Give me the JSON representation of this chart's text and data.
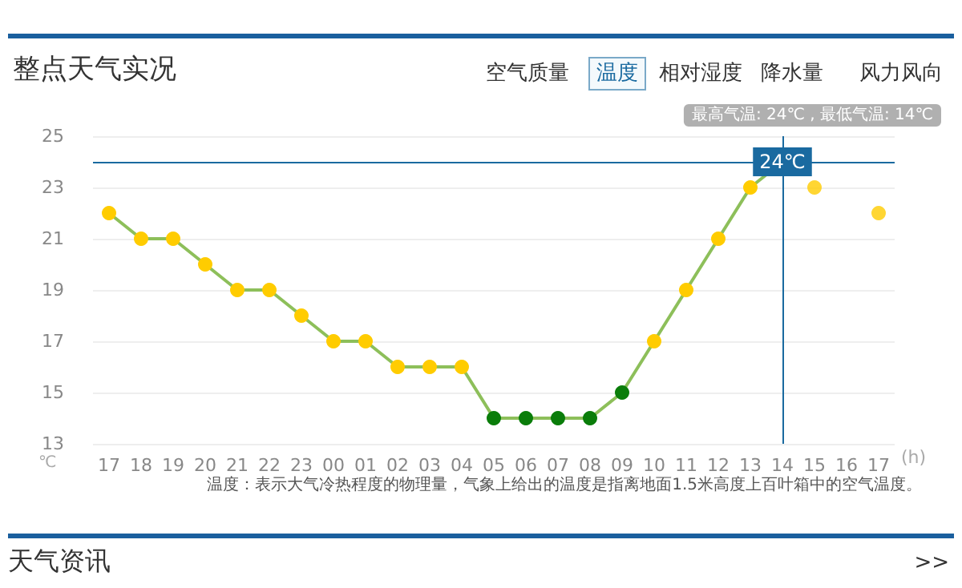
{
  "chart_data": {
    "type": "line",
    "title": "整点天气实况",
    "xlabel": "(h)",
    "ylabel": "℃",
    "categories": [
      "17",
      "18",
      "19",
      "20",
      "21",
      "22",
      "23",
      "00",
      "01",
      "02",
      "03",
      "04",
      "05",
      "06",
      "07",
      "08",
      "09",
      "10",
      "11",
      "12",
      "13",
      "14",
      "15",
      "16",
      "17"
    ],
    "series": [
      {
        "color": "#8dbf5a",
        "values": [
          22,
          21,
          21,
          20,
          19,
          19,
          18,
          17,
          17,
          16,
          16,
          16,
          14,
          14,
          14,
          14,
          15,
          17,
          19,
          21,
          23,
          24,
          null,
          null,
          null
        ],
        "colors": [
          "#ffcc00",
          "#ffcc00",
          "#ffcc00",
          "#ffcc00",
          "#ffcc00",
          "#ffcc00",
          "#ffcc00",
          "#ffcc00",
          "#ffcc00",
          "#ffcc00",
          "#ffcc00",
          "#ffcc00",
          "#0a7d0a",
          "#0a7d0a",
          "#0a7d0a",
          "#0a7d0a",
          "#0a7d0a",
          "#ffcc00",
          "#ffcc00",
          "#ffcc00",
          "#ffcc00",
          "#ffcc00",
          null,
          null,
          null
        ]
      },
      {
        "type": "scatter",
        "color": "#ffcc00",
        "values": [
          null,
          null,
          null,
          null,
          null,
          null,
          null,
          null,
          null,
          null,
          null,
          null,
          null,
          null,
          null,
          null,
          null,
          null,
          null,
          null,
          null,
          null,
          23,
          null,
          22
        ]
      }
    ],
    "ylim": [
      13,
      25
    ],
    "yticks": [
      13,
      15,
      17,
      19,
      21,
      23,
      25
    ],
    "grid": "y",
    "marker": "circle",
    "line_style": "solid",
    "ref_lines": [
      {
        "axis": "y",
        "value": 24,
        "label": "24℃",
        "color": "#1a6aa0"
      },
      {
        "axis": "x",
        "value": "14",
        "color": "#1a6aa0"
      }
    ],
    "annotations": [
      "空气质量",
      "温度",
      "相对湿度",
      "降水量",
      "风力风向",
      "最高气温: 24℃ , 最低气温: 14℃",
      "温度：表示大气冷热程度的物理量，气象上给出的温度是指离地面1.5米高度上百叶箱中的空气温度。",
      "天气资讯",
      ">>"
    ]
  }
}
